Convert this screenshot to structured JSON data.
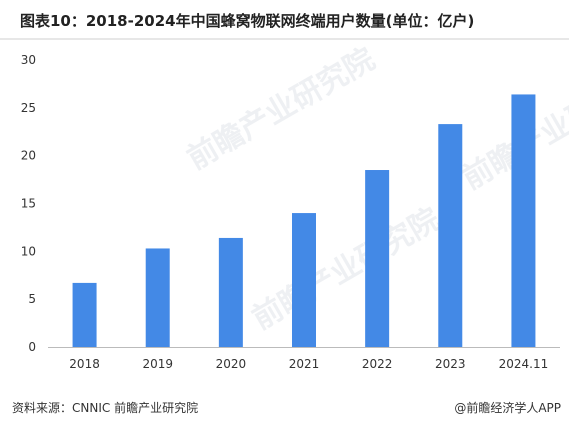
{
  "title": "图表10：2018-2024年中国蜂窝物联网终端用户数量(单位：亿户)",
  "source": "资料来源：CNNIC 前瞻产业研究院",
  "credit": "@前瞻经济学人APP",
  "watermark": "前瞻产业研究院",
  "colors": {
    "bar": "#4389e6",
    "axis": "#bbbbbb",
    "text": "#333333"
  },
  "chart_data": {
    "type": "bar",
    "title": "图表10：2018-2024年中国蜂窝物联网终端用户数量(单位：亿户)",
    "xlabel": "",
    "ylabel": "",
    "categories": [
      "2018",
      "2019",
      "2020",
      "2021",
      "2022",
      "2023",
      "2024.11"
    ],
    "values": [
      6.7,
      10.3,
      11.4,
      14.0,
      18.5,
      23.3,
      26.4
    ],
    "ylim": [
      0,
      30
    ],
    "yticks": [
      0,
      5,
      10,
      15,
      20,
      25,
      30
    ],
    "grid": false,
    "legend": "none"
  }
}
